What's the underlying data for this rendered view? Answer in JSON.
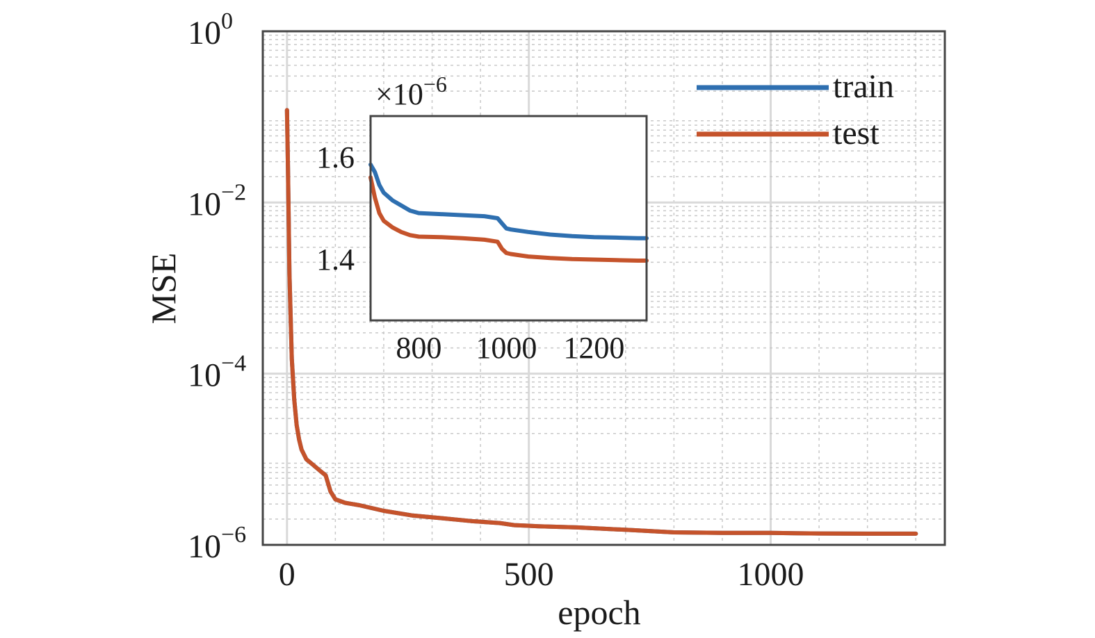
{
  "chart_data": [
    {
      "type": "line",
      "xlabel": "epoch",
      "ylabel": "MSE",
      "yscale": "log",
      "xlim": [
        -50,
        1360
      ],
      "ylim": [
        1e-06,
        1
      ],
      "xticks": [
        0,
        500,
        1000
      ],
      "xtick_labels": [
        "0",
        "500",
        "1000"
      ],
      "yticks": [
        1e-06,
        0.0001,
        0.01,
        1
      ],
      "ytick_labels": [
        {
          "base": "10",
          "exp": "−6"
        },
        {
          "base": "10",
          "exp": "−4"
        },
        {
          "base": "10",
          "exp": "−2"
        },
        {
          "base": "10",
          "exp": "0"
        }
      ],
      "grid": true,
      "legend_position": "top-right",
      "series": [
        {
          "name": "train",
          "color": "#2e6fb0",
          "x": [
            0,
            2,
            5,
            10,
            15,
            20,
            25,
            30,
            40,
            55,
            70,
            80,
            90,
            100,
            120,
            150,
            200,
            260,
            320,
            380,
            440,
            470,
            520,
            600,
            700,
            750,
            800,
            900,
            1000,
            1100,
            1200,
            1300
          ],
          "y": [
            0.12,
            0.025,
            0.0015,
            0.00015,
            5e-05,
            2.5e-05,
            1.7e-05,
            1.3e-05,
            1e-05,
            8.5e-06,
            7.2e-06,
            6.5e-06,
            4.2e-06,
            3.4e-06,
            3.1e-06,
            2.9e-06,
            2.5e-06,
            2.2e-06,
            2.05e-06,
            1.9e-06,
            1.8e-06,
            1.7e-06,
            1.65e-06,
            1.6e-06,
            1.5e-06,
            1.45e-06,
            1.4e-06,
            1.38e-06,
            1.38e-06,
            1.36e-06,
            1.35e-06,
            1.35e-06
          ]
        },
        {
          "name": "test",
          "color": "#c5532b",
          "x": [
            0,
            2,
            5,
            10,
            15,
            20,
            25,
            30,
            40,
            55,
            70,
            80,
            90,
            100,
            120,
            150,
            200,
            260,
            320,
            380,
            440,
            470,
            520,
            600,
            700,
            750,
            800,
            900,
            1000,
            1100,
            1200,
            1300
          ],
          "y": [
            0.12,
            0.025,
            0.0015,
            0.00015,
            5e-05,
            2.5e-05,
            1.7e-05,
            1.3e-05,
            1e-05,
            8.5e-06,
            7.2e-06,
            6.5e-06,
            4.2e-06,
            3.4e-06,
            3.1e-06,
            2.9e-06,
            2.5e-06,
            2.2e-06,
            2.05e-06,
            1.9e-06,
            1.8e-06,
            1.7e-06,
            1.65e-06,
            1.6e-06,
            1.5e-06,
            1.45e-06,
            1.4e-06,
            1.38e-06,
            1.38e-06,
            1.36e-06,
            1.35e-06,
            1.35e-06
          ]
        }
      ]
    },
    {
      "type": "line",
      "inset": true,
      "y_multiplier_label": {
        "prefix": "×10",
        "exp": "−6"
      },
      "xlim": [
        690,
        1320
      ],
      "ylim": [
        1.28,
        1.68
      ],
      "xticks": [
        800,
        1000,
        1200
      ],
      "xtick_labels": [
        "800",
        "1000",
        "1200"
      ],
      "yticks": [
        1.4,
        1.6
      ],
      "ytick_labels": [
        "1.4",
        "1.6"
      ],
      "grid": false,
      "series": [
        {
          "name": "train",
          "color": "#2e6fb0",
          "x": [
            690,
            700,
            710,
            720,
            740,
            760,
            780,
            800,
            850,
            900,
            950,
            980,
            990,
            1000,
            1010,
            1050,
            1100,
            1150,
            1200,
            1250,
            1300,
            1320
          ],
          "y": [
            1.585,
            1.57,
            1.545,
            1.53,
            1.515,
            1.505,
            1.495,
            1.49,
            1.488,
            1.486,
            1.484,
            1.48,
            1.47,
            1.46,
            1.458,
            1.453,
            1.448,
            1.445,
            1.443,
            1.442,
            1.441,
            1.441
          ]
        },
        {
          "name": "test",
          "color": "#c5532b",
          "x": [
            690,
            700,
            710,
            720,
            740,
            760,
            780,
            800,
            850,
            900,
            950,
            980,
            990,
            1000,
            1010,
            1050,
            1100,
            1150,
            1200,
            1250,
            1300,
            1320
          ],
          "y": [
            1.56,
            1.52,
            1.49,
            1.475,
            1.462,
            1.453,
            1.447,
            1.444,
            1.443,
            1.441,
            1.438,
            1.434,
            1.42,
            1.412,
            1.41,
            1.405,
            1.402,
            1.4,
            1.399,
            1.398,
            1.397,
            1.397
          ]
        }
      ]
    }
  ]
}
